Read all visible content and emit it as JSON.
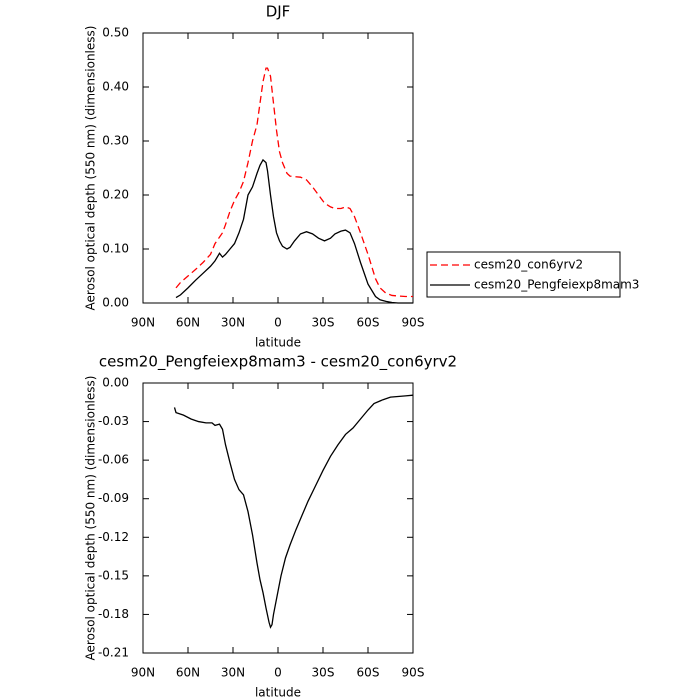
{
  "chart_data": [
    {
      "type": "line",
      "title": "DJF",
      "x_label": "latitude",
      "y_label": "Aerosol optical depth (550 nm) (dimensionless)",
      "x": [
        68,
        65,
        60,
        55,
        50,
        45,
        42,
        39,
        37,
        35,
        32,
        29,
        26,
        23,
        20,
        17,
        14,
        12,
        10,
        8,
        7,
        5,
        3,
        1,
        -1,
        -3,
        -6,
        -8,
        -11,
        -15,
        -19,
        -23,
        -27,
        -31,
        -35,
        -38,
        -42,
        -45,
        -48,
        -51,
        -55,
        -60,
        -65,
        -68,
        -72,
        -76,
        -80,
        -85,
        -90
      ],
      "series": [
        {
          "name": "cesm20_con6yrv2",
          "color": "#ff0000",
          "dashed": true,
          "values": [
            0.028,
            0.038,
            0.05,
            0.062,
            0.075,
            0.09,
            0.11,
            0.122,
            0.13,
            0.145,
            0.17,
            0.19,
            0.205,
            0.225,
            0.26,
            0.3,
            0.33,
            0.37,
            0.41,
            0.435,
            0.435,
            0.42,
            0.37,
            0.32,
            0.28,
            0.26,
            0.24,
            0.235,
            0.234,
            0.233,
            0.228,
            0.215,
            0.2,
            0.185,
            0.178,
            0.175,
            0.175,
            0.178,
            0.175,
            0.16,
            0.13,
            0.09,
            0.045,
            0.028,
            0.018,
            0.014,
            0.013,
            0.012,
            0.012
          ]
        },
        {
          "name": "cesm20_Pengfeiexp8mam3",
          "color": "#000000",
          "dashed": false,
          "values": [
            0.01,
            0.015,
            0.028,
            0.042,
            0.055,
            0.068,
            0.078,
            0.092,
            0.085,
            0.09,
            0.1,
            0.11,
            0.13,
            0.155,
            0.2,
            0.215,
            0.24,
            0.255,
            0.265,
            0.26,
            0.245,
            0.2,
            0.16,
            0.13,
            0.115,
            0.105,
            0.1,
            0.103,
            0.115,
            0.128,
            0.132,
            0.128,
            0.12,
            0.115,
            0.12,
            0.128,
            0.133,
            0.135,
            0.13,
            0.11,
            0.075,
            0.035,
            0.012,
            0.006,
            0.003,
            0.001,
            0.0,
            0.0,
            0.0
          ]
        }
      ],
      "xlim": [
        90,
        -90
      ],
      "xticks": [
        {
          "value": 90,
          "label": "90N"
        },
        {
          "value": 60,
          "label": "60N"
        },
        {
          "value": 30,
          "label": "30N"
        },
        0,
        {
          "value": -30,
          "label": "30S"
        },
        {
          "value": -60,
          "label": "60S"
        },
        {
          "value": -90,
          "label": "90S"
        }
      ],
      "ylim": [
        0,
        0.5
      ],
      "yticks": [
        {
          "value": 0,
          "label": "0.00"
        },
        {
          "value": 0.1,
          "label": "0.10"
        },
        {
          "value": 0.2,
          "label": "0.20"
        },
        {
          "value": 0.3,
          "label": "0.30"
        },
        {
          "value": 0.4,
          "label": "0.40"
        },
        {
          "value": 0.5,
          "label": "0.50"
        }
      ],
      "legend": "right"
    },
    {
      "type": "line",
      "title": "cesm20_Pengfeiexp8mam3 - cesm20_con6yrv2",
      "x_label": "latitude",
      "y_label": "Aerosol optical depth (550 nm) (dimensionless)",
      "x": [
        69,
        68,
        63,
        58,
        53,
        48,
        44,
        42,
        39,
        37,
        35,
        32,
        29,
        26,
        23,
        20,
        17,
        14,
        12,
        10,
        8,
        6,
        5,
        4,
        3,
        1,
        -2,
        -5,
        -8,
        -12,
        -16,
        -20,
        -25,
        -30,
        -35,
        -40,
        -45,
        -50,
        -55,
        -60,
        -64,
        -70,
        -75,
        -80,
        -85,
        -90
      ],
      "series": [
        {
          "color": "#000000",
          "dashed": false,
          "values": [
            -0.019,
            -0.023,
            -0.025,
            -0.028,
            -0.03,
            -0.031,
            -0.031,
            -0.033,
            -0.032,
            -0.036,
            -0.048,
            -0.062,
            -0.075,
            -0.083,
            -0.087,
            -0.1,
            -0.118,
            -0.14,
            -0.153,
            -0.163,
            -0.175,
            -0.186,
            -0.19,
            -0.188,
            -0.18,
            -0.168,
            -0.15,
            -0.136,
            -0.126,
            -0.114,
            -0.103,
            -0.092,
            -0.08,
            -0.068,
            -0.057,
            -0.048,
            -0.04,
            -0.035,
            -0.028,
            -0.021,
            -0.016,
            -0.013,
            -0.011,
            -0.0105,
            -0.01,
            -0.0095
          ]
        }
      ],
      "xlim": [
        90,
        -90
      ],
      "xticks": [
        {
          "value": 90,
          "label": "90N"
        },
        {
          "value": 60,
          "label": "60N"
        },
        {
          "value": 30,
          "label": "30N"
        },
        0,
        {
          "value": -30,
          "label": "30S"
        },
        {
          "value": -60,
          "label": "60S"
        },
        {
          "value": -90,
          "label": "90S"
        }
      ],
      "ylim": [
        -0.21,
        0
      ],
      "yticks": [
        {
          "value": 0,
          "label": "0.00"
        },
        {
          "value": -0.03,
          "label": "-0.03"
        },
        {
          "value": -0.06,
          "label": "-0.06"
        },
        {
          "value": -0.09,
          "label": "-0.09"
        },
        {
          "value": -0.12,
          "label": "-0.12"
        },
        {
          "value": -0.15,
          "label": "-0.15"
        },
        {
          "value": -0.18,
          "label": "-0.18"
        },
        {
          "value": -0.21,
          "label": "-0.21"
        }
      ]
    }
  ]
}
